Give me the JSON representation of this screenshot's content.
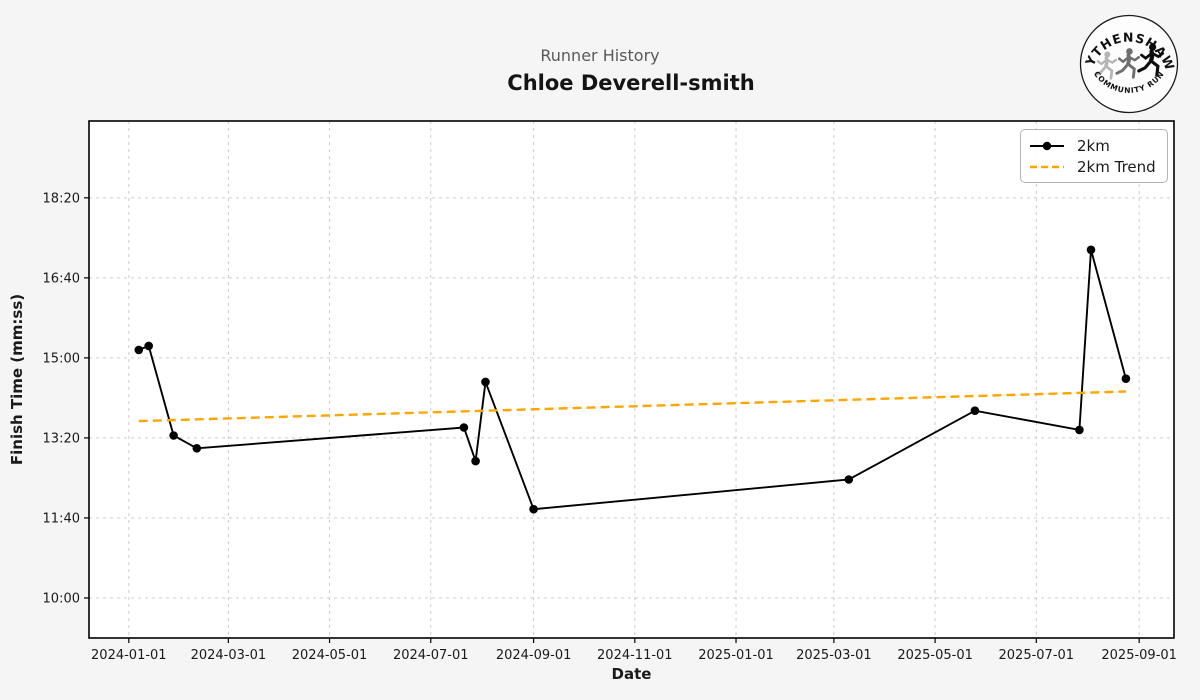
{
  "header": {
    "suptitle": "Runner History",
    "title": "Chloe Deverell-smith"
  },
  "logo": {
    "top_text": "WYTHENSHAWE",
    "bottom_text": "COMMUNITY RUN"
  },
  "colors": {
    "figure_bg": "#f5f5f5",
    "axes_bg": "#ffffff",
    "grid": "#cccccc",
    "spine": "#000000",
    "tick_label": "#1a1a1a",
    "line": "#000000",
    "trend": "#FFA500"
  },
  "chart_data": {
    "type": "line",
    "title": "Chloe Deverell-smith",
    "subtitle": "Runner History",
    "xlabel": "Date",
    "ylabel": "Finish Time (mm:ss)",
    "grid": true,
    "legend_position": "upper right",
    "x_tick_labels": [
      "2024-01-01",
      "2024-03-01",
      "2024-05-01",
      "2024-07-01",
      "2024-09-01",
      "2024-11-01",
      "2025-01-01",
      "2025-03-01",
      "2025-05-01",
      "2025-07-01",
      "2025-09-01"
    ],
    "y_tick_labels": [
      "10:00",
      "11:40",
      "13:20",
      "15:00",
      "16:40",
      "18:20"
    ],
    "xlim": [
      "2023-12-08",
      "2025-09-22"
    ],
    "ylim": [
      "09:10",
      "19:56"
    ],
    "series": [
      {
        "name": "2km",
        "style": "solid_markers",
        "color": "#000000",
        "points": [
          [
            "2024-01-07",
            "15:10"
          ],
          [
            "2024-01-13",
            "15:15"
          ],
          [
            "2024-01-28",
            "13:23"
          ],
          [
            "2024-02-11",
            "13:07"
          ],
          [
            "2024-07-21",
            "13:33"
          ],
          [
            "2024-07-28",
            "12:51"
          ],
          [
            "2024-08-03",
            "14:30"
          ],
          [
            "2024-09-01",
            "11:51"
          ],
          [
            "2025-03-10",
            "12:28"
          ],
          [
            "2025-05-25",
            "13:54"
          ],
          [
            "2025-07-27",
            "13:30"
          ],
          [
            "2025-08-03",
            "17:15"
          ],
          [
            "2025-08-24",
            "14:34"
          ]
        ]
      },
      {
        "name": "2km Trend",
        "style": "dashed",
        "color": "#FFA500",
        "points": [
          [
            "2024-01-07",
            "13:41"
          ],
          [
            "2025-08-24",
            "14:18"
          ]
        ]
      }
    ]
  }
}
